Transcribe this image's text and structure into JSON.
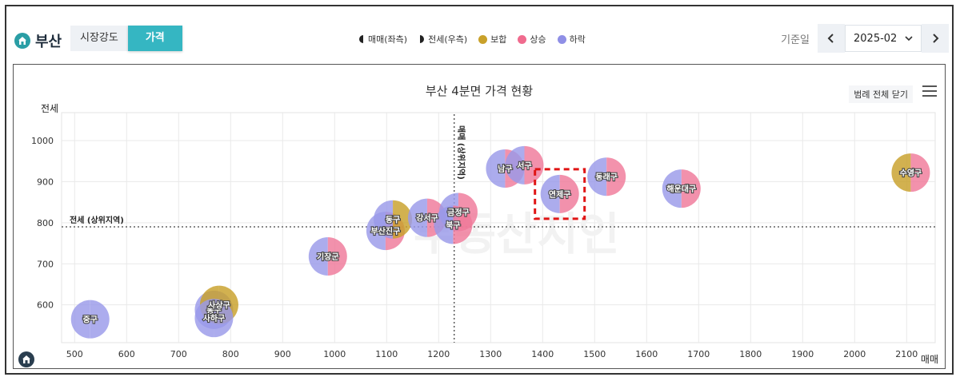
{
  "header": {
    "region": "부산",
    "tabs": [
      "시장강도",
      "가격"
    ],
    "active_tab": "가격",
    "legend": [
      {
        "label": "매매(좌측)",
        "icon": "left-half-icon"
      },
      {
        "label": "전세(우측)",
        "icon": "right-half-icon"
      },
      {
        "label": "보합",
        "color": "#c9a12a"
      },
      {
        "label": "상승",
        "color": "#f06b8e"
      },
      {
        "label": "하락",
        "color": "#8f8fe6"
      }
    ],
    "date_label": "기준일",
    "date_value": "2025-02"
  },
  "chart_data": {
    "type": "scatter",
    "title": "부산 4분면 가격 현황",
    "xlabel": "매매",
    "ylabel": "전세",
    "xlim": [
      475,
      2155
    ],
    "ylim": [
      508,
      1068
    ],
    "x_ticks": [
      500,
      600,
      700,
      800,
      900,
      1000,
      1100,
      1200,
      1300,
      1400,
      1500,
      1600,
      1700,
      1800,
      1900,
      2000,
      2100
    ],
    "y_ticks": [
      600,
      700,
      800,
      900,
      1000
    ],
    "ref_x": {
      "value": 1230,
      "label": "매매 (상위지역)"
    },
    "ref_y": {
      "value": 790,
      "label": "전세 (상위지역)"
    },
    "legend_close_label": "범례 전체 닫기",
    "watermark": "부동산지인",
    "points": [
      {
        "name": "중구",
        "x": 530,
        "y": 565,
        "left": "하락",
        "right": "하락"
      },
      {
        "name": "동구",
        "x": 768,
        "y": 588,
        "left": "하락",
        "right": "하락"
      },
      {
        "name": "사상구",
        "x": 778,
        "y": 600,
        "left": "보합",
        "right": "보합"
      },
      {
        "name": "사하구",
        "x": 768,
        "y": 568,
        "left": "하락",
        "right": "하락"
      },
      {
        "name": "기장군",
        "x": 987,
        "y": 718,
        "left": "하락",
        "right": "상승"
      },
      {
        "name": "부산진구",
        "x": 1098,
        "y": 780,
        "left": "하락",
        "right": "상승"
      },
      {
        "name": "동구",
        "x": 1112,
        "y": 808,
        "left": "하락",
        "right": "보합"
      },
      {
        "name": "강서구",
        "x": 1178,
        "y": 812,
        "left": "하락",
        "right": "상승"
      },
      {
        "name": "금정구",
        "x": 1238,
        "y": 826,
        "left": "하락",
        "right": "상승"
      },
      {
        "name": "북구",
        "x": 1228,
        "y": 795,
        "left": "하락",
        "right": "상승"
      },
      {
        "name": "남구",
        "x": 1328,
        "y": 932,
        "left": "하락",
        "right": "상승"
      },
      {
        "name": "서구",
        "x": 1365,
        "y": 940,
        "left": "하락",
        "right": "상승"
      },
      {
        "name": "연제구",
        "x": 1433,
        "y": 870,
        "left": "하락",
        "right": "상승"
      },
      {
        "name": "동래구",
        "x": 1523,
        "y": 912,
        "left": "하락",
        "right": "상승"
      },
      {
        "name": "해운대구",
        "x": 1667,
        "y": 883,
        "left": "하락",
        "right": "상승"
      },
      {
        "name": "수영구",
        "x": 2108,
        "y": 922,
        "left": "보합",
        "right": "상승"
      }
    ],
    "highlight": "연제구",
    "colors": {
      "보합": "#c9a12a",
      "상승": "#f07a9a",
      "하락": "#9a9aea"
    }
  }
}
